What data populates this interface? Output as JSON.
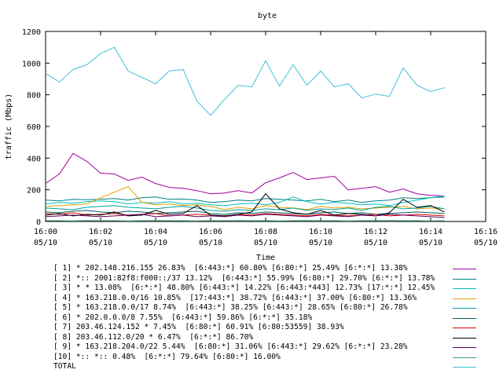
{
  "chart_data": {
    "type": "line",
    "title": "byte",
    "xlabel": "Time",
    "ylabel": "traffic (Mbps)",
    "ylim": [
      0,
      1200
    ],
    "yticks": [
      0,
      200,
      400,
      600,
      800,
      1000,
      1200
    ],
    "xlim": [
      "16:00",
      "16:16"
    ],
    "xtick_labels": [
      {
        "time": "16:00",
        "date": "05/10"
      },
      {
        "time": "16:02",
        "date": "05/10"
      },
      {
        "time": "16:04",
        "date": "05/10"
      },
      {
        "time": "16:06",
        "date": "05/10"
      },
      {
        "time": "16:08",
        "date": "05/10"
      },
      {
        "time": "16:10",
        "date": "05/10"
      },
      {
        "time": "16:12",
        "date": "05/10"
      },
      {
        "time": "16:14",
        "date": "05/10"
      },
      {
        "time": "16:16",
        "date": "05/10"
      }
    ],
    "grid": false,
    "legend_position": "bottom",
    "x": [
      "16:00:00",
      "16:00:30",
      "16:01:00",
      "16:01:30",
      "16:02:00",
      "16:02:30",
      "16:03:00",
      "16:03:30",
      "16:04:00",
      "16:04:30",
      "16:05:00",
      "16:05:30",
      "16:06:00",
      "16:06:30",
      "16:07:00",
      "16:07:30",
      "16:08:00",
      "16:08:30",
      "16:09:00",
      "16:09:30",
      "16:10:00",
      "16:10:30",
      "16:11:00",
      "16:11:30",
      "16:12:00",
      "16:12:30",
      "16:13:00",
      "16:13:30",
      "16:14:00",
      "16:14:30"
    ],
    "series": [
      {
        "label": "[ 1] * 202.148.216.155 26.83%  [6:443:*] 60.80% [6:80:*] 25.49% [6:*:*] 13.38%",
        "color": "#a000a0",
        "values": [
          240,
          300,
          430,
          380,
          305,
          300,
          260,
          280,
          240,
          215,
          210,
          195,
          175,
          180,
          195,
          180,
          245,
          275,
          310,
          265,
          275,
          285,
          200,
          210,
          220,
          185,
          205,
          175,
          165,
          160
        ]
      },
      {
        "label": "[ 2] *:: 2001:82f8:f000::/37 13.12%  [6:443:*] 55.99% [6:80:*] 29.70% [6:*:*] 13.78%",
        "color": "#008080",
        "values": [
          135,
          130,
          140,
          138,
          140,
          145,
          135,
          150,
          155,
          140,
          142,
          135,
          120,
          125,
          135,
          130,
          145,
          140,
          135,
          130,
          140,
          125,
          135,
          120,
          130,
          135,
          150,
          145,
          150,
          155
        ]
      },
      {
        "label": "[ 3] * * 13.08%  [6:*:*] 48.80% [6:443:*] 14.22% [6:443:*443] 12.73% [17:*:*] 12.45%",
        "color": "#00c0c0",
        "values": [
          110,
          120,
          115,
          125,
          130,
          125,
          110,
          120,
          115,
          125,
          110,
          115,
          105,
          100,
          110,
          115,
          105,
          120,
          155,
          125,
          110,
          120,
          115,
          105,
          110,
          100,
          120,
          135,
          150,
          160
        ]
      },
      {
        "label": "[ 4] * 163.218.0.0/16 10.85%  [17:443:*] 38.72% [6:443:*] 37.00% [6:80:*] 13.36%",
        "color": "#e0a000",
        "values": [
          95,
          100,
          105,
          110,
          150,
          185,
          220,
          120,
          105,
          110,
          100,
          105,
          95,
          75,
          90,
          80,
          100,
          90,
          85,
          75,
          95,
          85,
          90,
          80,
          85,
          90,
          95,
          80,
          85,
          80
        ]
      },
      {
        "label": "[ 5] * 163.218.0.0/17 8.74%  [6:443:*] 38.25% [6:443:*] 28.65% [6:80:*] 26.78%",
        "color": "#00a0a0",
        "values": [
          85,
          80,
          75,
          90,
          95,
          100,
          90,
          85,
          80,
          90,
          95,
          85,
          70,
          65,
          75,
          70,
          80,
          75,
          85,
          70,
          80,
          75,
          85,
          70,
          90,
          95,
          80,
          85,
          95,
          80
        ]
      },
      {
        "label": "[ 6] * 202.0.0.0/8 7.55%  [6:443:*] 59.86% [6:*:*] 35.18%",
        "color": "#006060",
        "values": [
          60,
          55,
          65,
          70,
          60,
          55,
          65,
          60,
          50,
          55,
          60,
          65,
          50,
          45,
          55,
          50,
          60,
          55,
          50,
          45,
          55,
          60,
          50,
          55,
          45,
          50,
          55,
          60,
          55,
          50
        ]
      },
      {
        "label": "[ 7] 203.46.124.152 * 7.45%  [6:80:*] 60.91% [6:80:53559] 38.93%",
        "color": "#e00000",
        "values": [
          50,
          45,
          55,
          40,
          45,
          50,
          40,
          45,
          50,
          35,
          40,
          45,
          40,
          35,
          45,
          40,
          50,
          45,
          40,
          35,
          45,
          40,
          35,
          40,
          45,
          35,
          40,
          45,
          40,
          35
        ]
      },
      {
        "label": "[ 8] 203.46.112.0/20 * 6.47%  [6:*:*] 86.70%",
        "color": "#000000",
        "values": [
          40,
          50,
          35,
          45,
          40,
          60,
          35,
          40,
          70,
          45,
          50,
          100,
          40,
          35,
          45,
          60,
          175,
          80,
          55,
          45,
          70,
          40,
          50,
          45,
          35,
          55,
          140,
          90,
          100,
          60
        ]
      },
      {
        "label": "[ 9] * 163.218.204.0/22 5.44%  [6:80:*] 31.06% [6:443:*] 29.62% [6:*:*] 23.28%",
        "color": "#600060",
        "values": [
          30,
          35,
          40,
          35,
          30,
          35,
          40,
          45,
          30,
          35,
          40,
          30,
          35,
          30,
          40,
          35,
          45,
          40,
          35,
          30,
          40,
          35,
          30,
          40,
          35,
          45,
          40,
          35,
          30,
          25
        ]
      },
      {
        "label": "[10] *:: *:: 0.48%  [6:*:*] 79.64% [6:80:*] 16.00%",
        "color": "#40a080",
        "values": [
          5,
          5,
          4,
          6,
          5,
          5,
          4,
          5,
          6,
          5,
          5,
          4,
          5,
          5,
          6,
          5,
          5,
          4,
          5,
          6,
          5,
          5,
          4,
          5,
          5,
          6,
          5,
          5,
          4,
          5
        ]
      },
      {
        "label": "TOTAL",
        "color": "#40c0d8",
        "values": [
          935,
          880,
          960,
          990,
          1060,
          1100,
          950,
          910,
          870,
          950,
          960,
          760,
          670,
          770,
          860,
          850,
          1015,
          855,
          990,
          860,
          950,
          850,
          870,
          780,
          805,
          790,
          970,
          860,
          820,
          845
        ]
      }
    ]
  }
}
